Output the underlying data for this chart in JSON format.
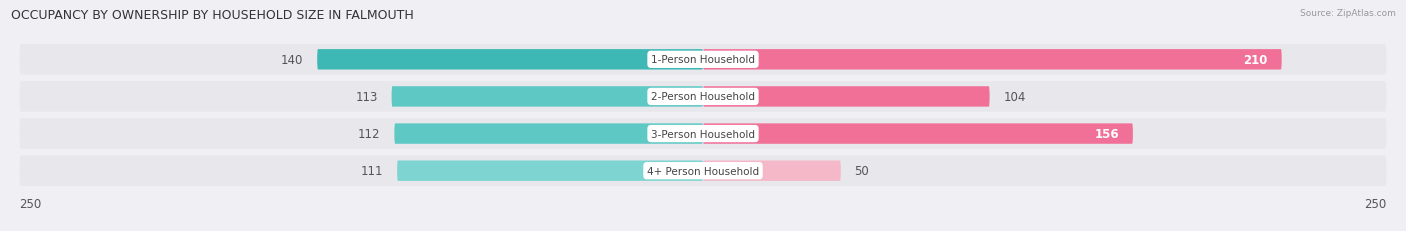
{
  "title": "OCCUPANCY BY OWNERSHIP BY HOUSEHOLD SIZE IN FALMOUTH",
  "source": "Source: ZipAtlas.com",
  "categories": [
    "1-Person Household",
    "2-Person Household",
    "3-Person Household",
    "4+ Person Household"
  ],
  "owner_values": [
    140,
    113,
    112,
    111
  ],
  "renter_values": [
    210,
    104,
    156,
    50
  ],
  "max_scale": 250,
  "owner_colors": [
    "#3db8b4",
    "#5ec8c4",
    "#5ec8c4",
    "#7dd4d0"
  ],
  "renter_colors": [
    "#f07098",
    "#f07098",
    "#f07098",
    "#f4b8c8"
  ],
  "row_bg_color": "#e8e8ec",
  "label_color": "#555555",
  "owner_legend_color": "#3db8b4",
  "renter_legend_color": "#f07098",
  "fig_bg_color": "#f0f0f4"
}
